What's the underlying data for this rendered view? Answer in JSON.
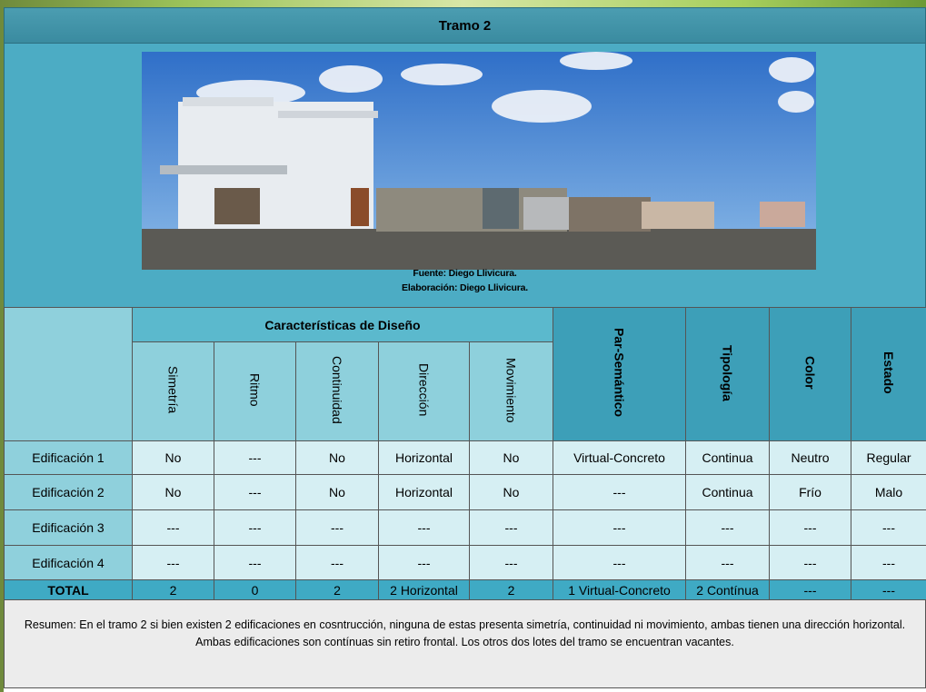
{
  "header": {
    "title": "Tramo 2"
  },
  "photo": {
    "source": "Fuente: Diego Llivicura.",
    "credit": "Elaboración: Diego Llivicura."
  },
  "table": {
    "group_header": "Características de Diseño",
    "sub_headers": [
      "Simetría",
      "Ritmo",
      "Continuidad",
      "Dirección",
      "Movimiento"
    ],
    "headers": [
      "Par-Semántico",
      "Tipología",
      "Color",
      "Estado"
    ],
    "rows": [
      [
        "Edificación 1",
        "No",
        "---",
        "No",
        "Horizontal",
        "No",
        "Virtual-Concreto",
        "Continua",
        "Neutro",
        "Regular"
      ],
      [
        "Edificación 2",
        "No",
        "---",
        "No",
        "Horizontal",
        "No",
        "---",
        "Continua",
        "Frío",
        "Malo"
      ],
      [
        "Edificación 3",
        "---",
        "---",
        "---",
        "---",
        "---",
        "---",
        "---",
        "---",
        "---"
      ],
      [
        "Edificación 4",
        "---",
        "---",
        "---",
        "---",
        "---",
        "---",
        "---",
        "---",
        "---"
      ]
    ],
    "total": [
      "TOTAL",
      "2",
      "0",
      "2",
      "2 Horizontal",
      "2",
      "1 Virtual-Concreto",
      "2 Contínua",
      "---",
      "---"
    ]
  },
  "summary": "Resumen: En el tramo 2 si bien existen 2 edificaciones en cosntrucción, ninguna de estas presenta simetría, continuidad ni movimiento, ambas tienen una dirección horizontal. Ambas edificaciones son contínuas sin retiro frontal. Los otros dos lotes del tramo se encuentran vacantes."
}
